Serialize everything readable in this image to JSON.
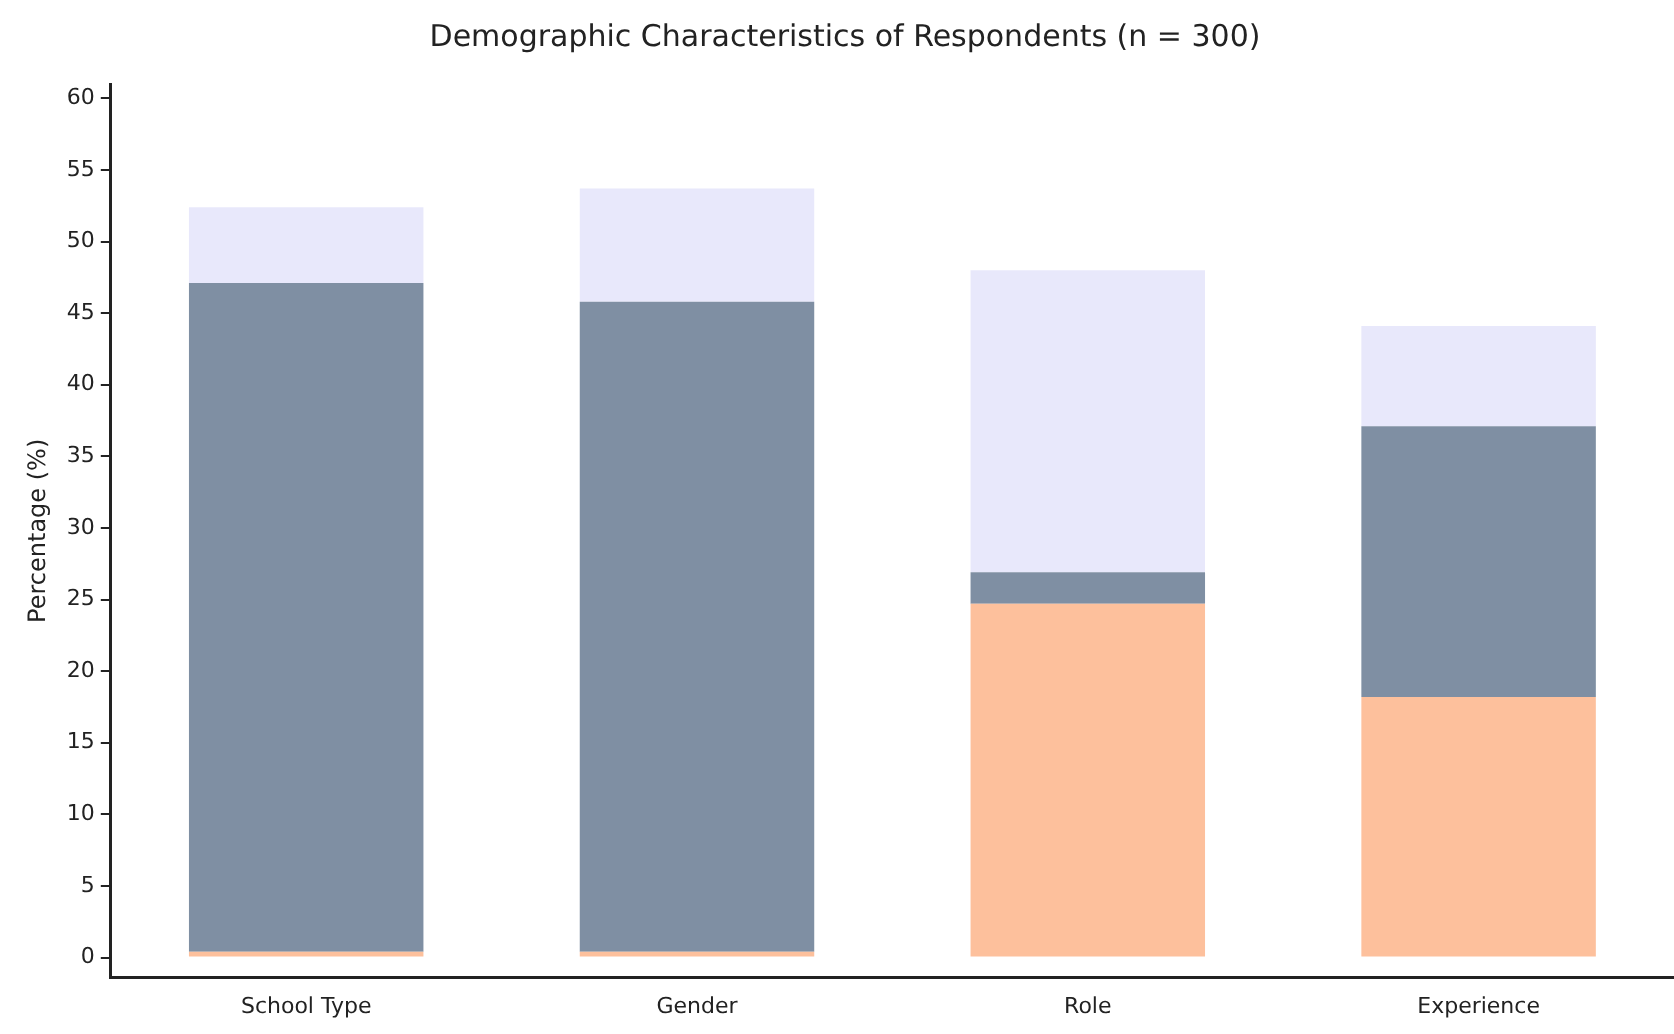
{
  "chart_data": {
    "type": "bar",
    "title": "Demographic Characteristics of Respondents (n = 300)",
    "ylabel": "Percentage (%)",
    "categories": [
      "School Type",
      "Gender",
      "Role",
      "Experience"
    ],
    "stacked": true,
    "series": [
      {
        "color": "#fdc09c",
        "values": [
          0.4,
          0.4,
          24.7,
          18.2
        ]
      },
      {
        "color": "#7f8fa3",
        "values": [
          46.7,
          45.4,
          2.2,
          18.9
        ]
      },
      {
        "color": "#e8e8fb",
        "values": [
          5.3,
          7.9,
          21.1,
          7.0
        ]
      }
    ],
    "ylim": [
      -1.4,
      61
    ],
    "yticks": [
      0,
      5,
      10,
      15,
      20,
      25,
      30,
      35,
      40,
      45,
      50,
      55,
      60
    ],
    "grid": false,
    "legend": false
  }
}
